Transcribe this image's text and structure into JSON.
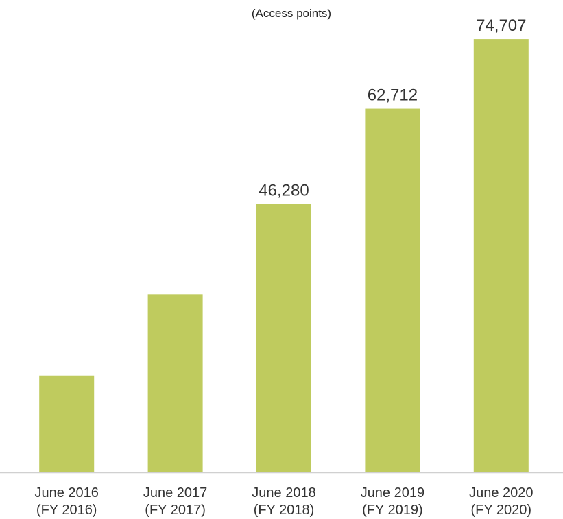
{
  "chart_data": {
    "type": "bar",
    "unit_label": "(Access points)",
    "categories": [
      [
        "June 2016",
        "(FY 2016)"
      ],
      [
        "June 2017",
        "(FY 2017)"
      ],
      [
        "June 2018",
        "(FY 2018)"
      ],
      [
        "June 2019",
        "(FY 2019)"
      ],
      [
        "June 2020",
        "(FY 2020)"
      ]
    ],
    "values": [
      16700,
      30700,
      46280,
      62712,
      74707
    ],
    "data_labels": [
      "",
      "",
      "46,280",
      "62,712",
      "74,707"
    ],
    "ylim": [
      0,
      75900
    ],
    "bar_color": "#bfcb5e",
    "axis_color": "#d0d0d0",
    "grid": false,
    "legend": false
  }
}
